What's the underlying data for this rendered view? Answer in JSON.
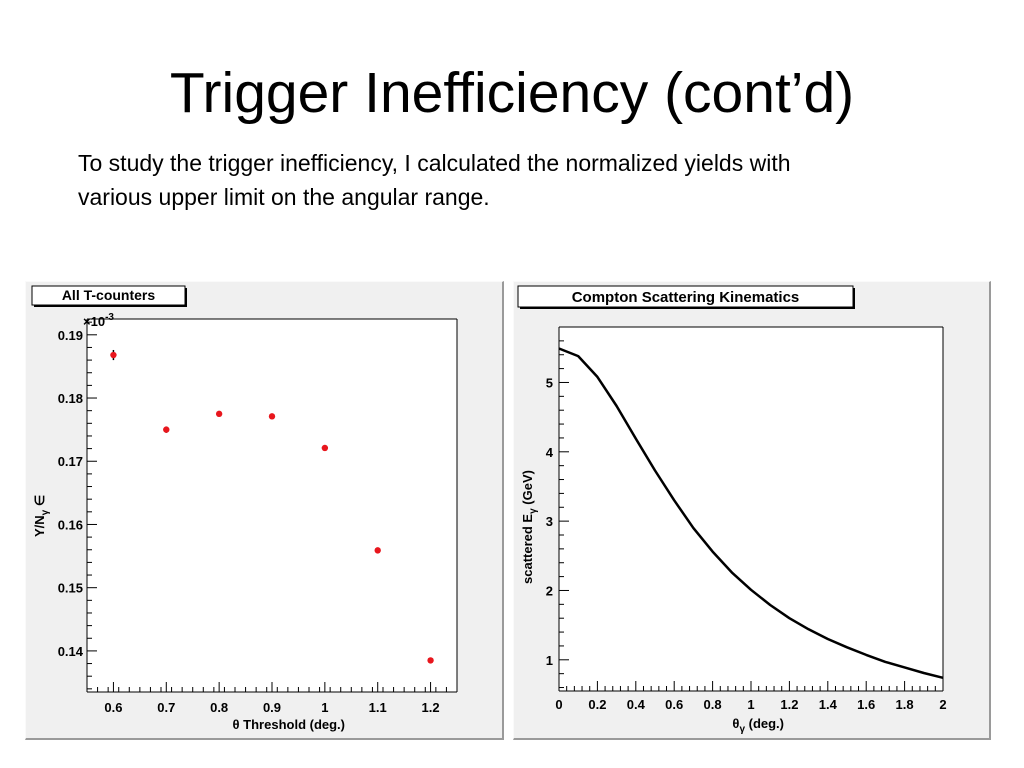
{
  "slide": {
    "title": "Trigger Inefficiency (cont’d)",
    "body_line1": "To study the trigger inefficiency, I calculated the normalized yields with",
    "body_line2": "various upper limit on the angular range."
  },
  "chart_data": [
    {
      "type": "scatter",
      "title": "All T-counters",
      "xlabel": "θ Threshold (deg.)",
      "ylabel": "Y/N_γ ∈",
      "y_multiplier": "×10^-3",
      "xlim": [
        0.55,
        1.25
      ],
      "ylim": [
        0.1335,
        0.1925
      ],
      "x_ticks": [
        0.6,
        0.7,
        0.8,
        0.9,
        1,
        1.1,
        1.2
      ],
      "x_tick_labels": [
        "0.6",
        "0.7",
        "0.8",
        "0.9",
        "1",
        "1.1",
        "1.2"
      ],
      "y_ticks": [
        0.14,
        0.15,
        0.16,
        0.17,
        0.18,
        0.19
      ],
      "y_tick_labels": [
        "0.14",
        "0.15",
        "0.16",
        "0.17",
        "0.18",
        "0.19"
      ],
      "marker_color": "#e8161d",
      "errorbar_color": "#000000",
      "series": [
        {
          "x": [
            0.6,
            0.7,
            0.8,
            0.9,
            1.0,
            1.1,
            1.2
          ],
          "y": [
            0.1868,
            0.175,
            0.1775,
            0.1771,
            0.1721,
            0.1559,
            0.1385
          ],
          "yerr": [
            0.0008,
            0.0005,
            0.0003,
            0.0003,
            0.0003,
            0.0002,
            0.0002
          ]
        }
      ]
    },
    {
      "type": "line",
      "title": "Compton Scattering Kinematics",
      "xlabel": "θ_γ (deg.)",
      "ylabel": "scattered E_γ (GeV)",
      "xlim": [
        0,
        2
      ],
      "ylim": [
        0.55,
        5.8
      ],
      "x_ticks": [
        0,
        0.2,
        0.4,
        0.6,
        0.8,
        1,
        1.2,
        1.4,
        1.6,
        1.8,
        2
      ],
      "x_tick_labels": [
        "0",
        "0.2",
        "0.4",
        "0.6",
        "0.8",
        "1",
        "1.2",
        "1.4",
        "1.6",
        "1.8",
        "2"
      ],
      "y_ticks": [
        1,
        2,
        3,
        4,
        5
      ],
      "y_tick_labels": [
        "1",
        "2",
        "3",
        "4",
        "5"
      ],
      "line_color": "#000000",
      "series": [
        {
          "x": [
            0,
            0.1,
            0.2,
            0.3,
            0.4,
            0.5,
            0.6,
            0.7,
            0.8,
            0.9,
            1.0,
            1.1,
            1.2,
            1.3,
            1.4,
            1.5,
            1.6,
            1.7,
            1.8,
            1.9,
            2.0
          ],
          "y": [
            5.49,
            5.38,
            5.08,
            4.66,
            4.19,
            3.73,
            3.3,
            2.9,
            2.56,
            2.26,
            2.01,
            1.79,
            1.6,
            1.44,
            1.3,
            1.18,
            1.07,
            0.97,
            0.89,
            0.81,
            0.74
          ]
        }
      ]
    }
  ]
}
